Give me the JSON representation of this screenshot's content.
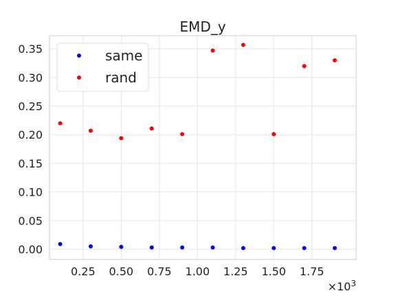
{
  "chart_data": {
    "type": "scatter",
    "title": "EMD_y",
    "xlabel": "",
    "ylabel": "",
    "x_scale_note": "×10",
    "x_scale_exponent": "3",
    "xlim": [
      0.03,
      2.04
    ],
    "ylim": [
      -0.018,
      0.373
    ],
    "x_ticks": [
      0.25,
      0.5,
      0.75,
      1.0,
      1.25,
      1.5,
      1.75
    ],
    "x_tick_labels": [
      "0.25",
      "0.50",
      "0.75",
      "1.00",
      "1.25",
      "1.50",
      "1.75"
    ],
    "y_ticks": [
      0.0,
      0.05,
      0.1,
      0.15,
      0.2,
      0.25,
      0.3,
      0.35
    ],
    "y_tick_labels": [
      "0.00",
      "0.05",
      "0.10",
      "0.15",
      "0.20",
      "0.25",
      "0.30",
      "0.35"
    ],
    "grid": true,
    "legend_position": "top-left",
    "series": [
      {
        "name": "same",
        "color": "#0000ff",
        "x": [
          0.1,
          0.3,
          0.5,
          0.7,
          0.9,
          1.1,
          1.3,
          1.5,
          1.7,
          1.9
        ],
        "y": [
          0.009,
          0.005,
          0.004,
          0.003,
          0.003,
          0.003,
          0.002,
          0.002,
          0.002,
          0.002
        ]
      },
      {
        "name": "rand",
        "color": "#ff0000",
        "x": [
          0.1,
          0.3,
          0.5,
          0.7,
          0.9,
          1.1,
          1.3,
          1.5,
          1.7,
          1.9
        ],
        "y": [
          0.22,
          0.207,
          0.194,
          0.211,
          0.201,
          0.347,
          0.357,
          0.201,
          0.32,
          0.33
        ]
      }
    ]
  }
}
